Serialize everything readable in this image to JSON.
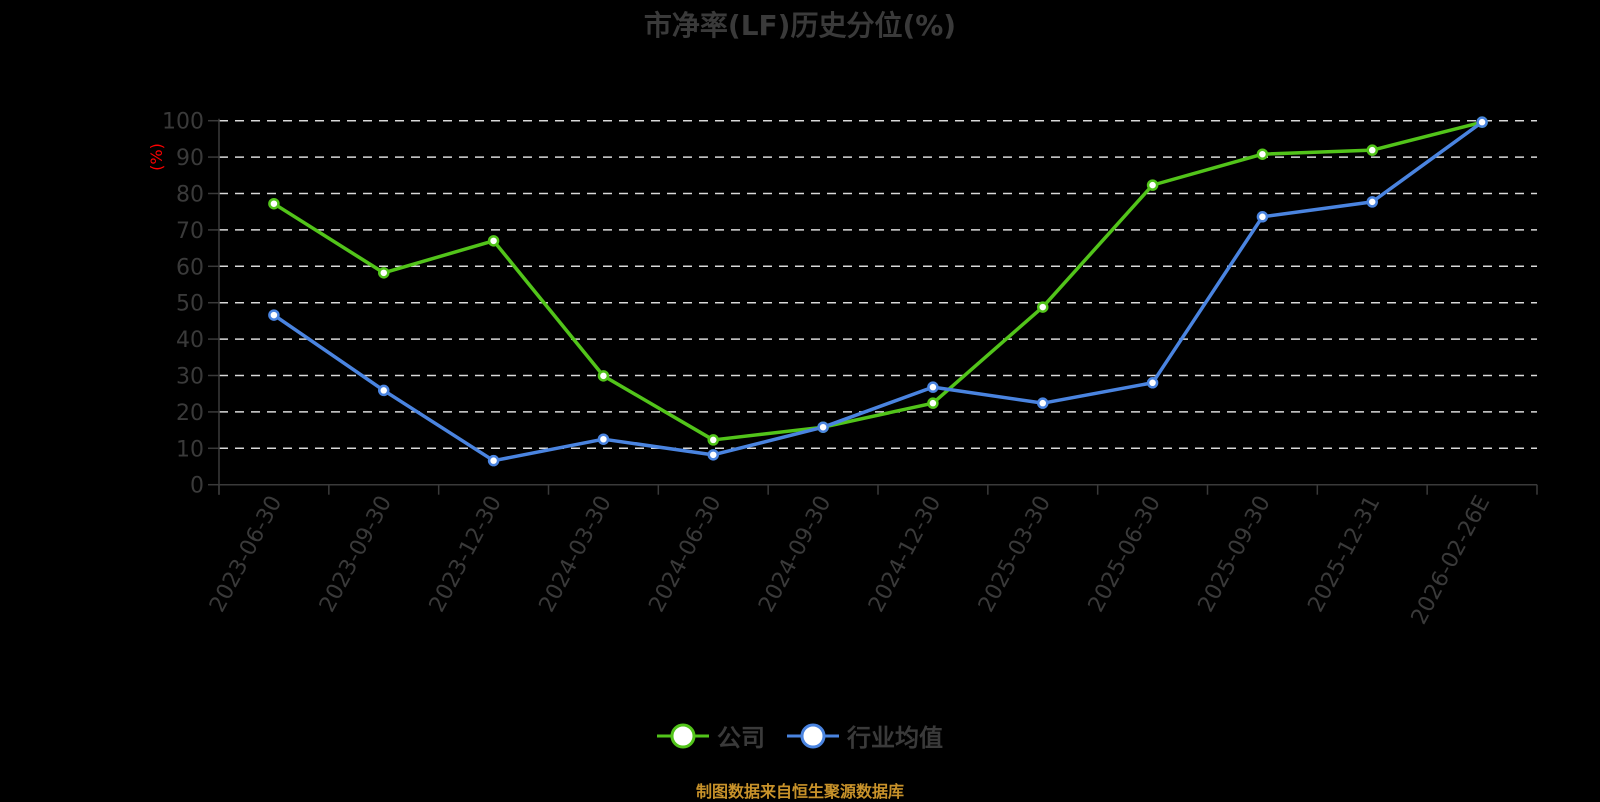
{
  "title": "市净率(LF)历史分位(%)",
  "y_axis_unit": "(%)",
  "footer": "制图数据来自恒生聚源数据库",
  "colors": {
    "company": "#52c41a",
    "industry": "#4a84e0",
    "axis_text": "#3a3a3a",
    "grid": "#d9d9d9",
    "unit_label": "#ff0000",
    "footer": "#c8922a",
    "background": "#000000"
  },
  "legend": [
    {
      "label": "公司",
      "color": "#52c41a"
    },
    {
      "label": "行业均值",
      "color": "#4a84e0"
    }
  ],
  "chart_data": {
    "type": "line",
    "title": "市净率(LF)历史分位(%)",
    "xlabel": "",
    "ylabel": "(%)",
    "ylim": [
      0,
      100
    ],
    "yticks": [
      0,
      10,
      20,
      30,
      40,
      50,
      60,
      70,
      80,
      90,
      100
    ],
    "grid": true,
    "legend_position": "bottom",
    "categories": [
      "2023-06-30",
      "2023-09-30",
      "2023-12-30",
      "2024-03-30",
      "2024-06-30",
      "2024-09-30",
      "2024-12-30",
      "2025-03-30",
      "2025-06-30",
      "2025-09-30",
      "2025-12-31",
      "2026-02-26E"
    ],
    "series": [
      {
        "name": "公司",
        "color": "#52c41a",
        "values": [
          77.2,
          58.2,
          67.0,
          29.9,
          12.3,
          15.8,
          22.4,
          48.8,
          82.3,
          90.8,
          91.9,
          99.6
        ]
      },
      {
        "name": "行业均值",
        "color": "#4a84e0",
        "values": [
          46.6,
          25.9,
          6.6,
          12.5,
          8.2,
          15.8,
          26.8,
          22.4,
          28.0,
          73.6,
          77.7,
          99.6
        ]
      }
    ]
  }
}
